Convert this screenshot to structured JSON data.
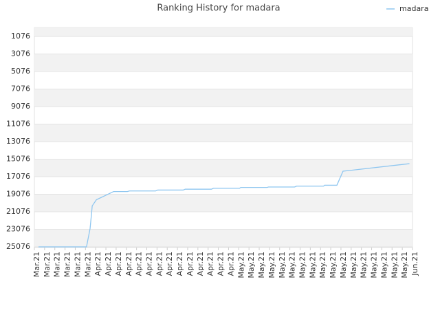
{
  "chart_data": {
    "type": "line",
    "title": "Ranking History for madara",
    "ylim": [
      25150,
      60
    ],
    "yticks": [
      1076,
      3076,
      5076,
      7076,
      9076,
      11076,
      13076,
      15076,
      17076,
      19076,
      21076,
      23076,
      25076
    ],
    "xlim": [
      0,
      37
    ],
    "xticks": [
      {
        "value": 0,
        "label": "Mar.21"
      },
      {
        "value": 1,
        "label": "Mar.21"
      },
      {
        "value": 2,
        "label": "Mar.21"
      },
      {
        "value": 3,
        "label": "Mar.21"
      },
      {
        "value": 4,
        "label": "Mar.21"
      },
      {
        "value": 5,
        "label": "Mar.21"
      },
      {
        "value": 6,
        "label": "Apr.21"
      },
      {
        "value": 7,
        "label": "Apr.21"
      },
      {
        "value": 8,
        "label": "Apr.21"
      },
      {
        "value": 9,
        "label": "Apr.21"
      },
      {
        "value": 10,
        "label": "Apr.21"
      },
      {
        "value": 11,
        "label": "Apr.21"
      },
      {
        "value": 12,
        "label": "Apr.21"
      },
      {
        "value": 13,
        "label": "Apr.21"
      },
      {
        "value": 14,
        "label": "Apr.21"
      },
      {
        "value": 15,
        "label": "Apr.21"
      },
      {
        "value": 16,
        "label": "Apr.21"
      },
      {
        "value": 17,
        "label": "Apr.21"
      },
      {
        "value": 18,
        "label": "Apr.21"
      },
      {
        "value": 19,
        "label": "Apr.21"
      },
      {
        "value": 20,
        "label": "May.21"
      },
      {
        "value": 21,
        "label": "May.21"
      },
      {
        "value": 22,
        "label": "May.21"
      },
      {
        "value": 23,
        "label": "May.21"
      },
      {
        "value": 24,
        "label": "May.21"
      },
      {
        "value": 25,
        "label": "May.21"
      },
      {
        "value": 26,
        "label": "May.21"
      },
      {
        "value": 27,
        "label": "May.21"
      },
      {
        "value": 28,
        "label": "May.21"
      },
      {
        "value": 29,
        "label": "May.21"
      },
      {
        "value": 30,
        "label": "May.21"
      },
      {
        "value": 31,
        "label": "May.21"
      },
      {
        "value": 32,
        "label": "May.21"
      },
      {
        "value": 33,
        "label": "May.21"
      },
      {
        "value": 34,
        "label": "May.21"
      },
      {
        "value": 35,
        "label": "May.21"
      },
      {
        "value": 36,
        "label": "May.21"
      },
      {
        "value": 37,
        "label": "Jun.21"
      }
    ],
    "series": [
      {
        "name": "madara",
        "color": "#8ec6f0",
        "x": [
          0.4,
          5.1,
          5.45,
          5.6,
          5.66,
          6.07,
          7.75,
          9.1,
          9.3,
          11.86,
          12.07,
          14.56,
          14.76,
          17.32,
          17.52,
          20.08,
          20.2,
          22.78,
          22.9,
          25.46,
          25.66,
          28.3,
          28.4,
          29.6,
          30.2,
          36.7
        ],
        "values": [
          25076,
          25076,
          23000,
          21200,
          20400,
          19700,
          18770,
          18770,
          18700,
          18700,
          18600,
          18600,
          18500,
          18500,
          18400,
          18400,
          18300,
          18300,
          18250,
          18250,
          18150,
          18150,
          18050,
          18050,
          16450,
          15590
        ]
      }
    ],
    "legend": "top-right",
    "grid": true
  }
}
